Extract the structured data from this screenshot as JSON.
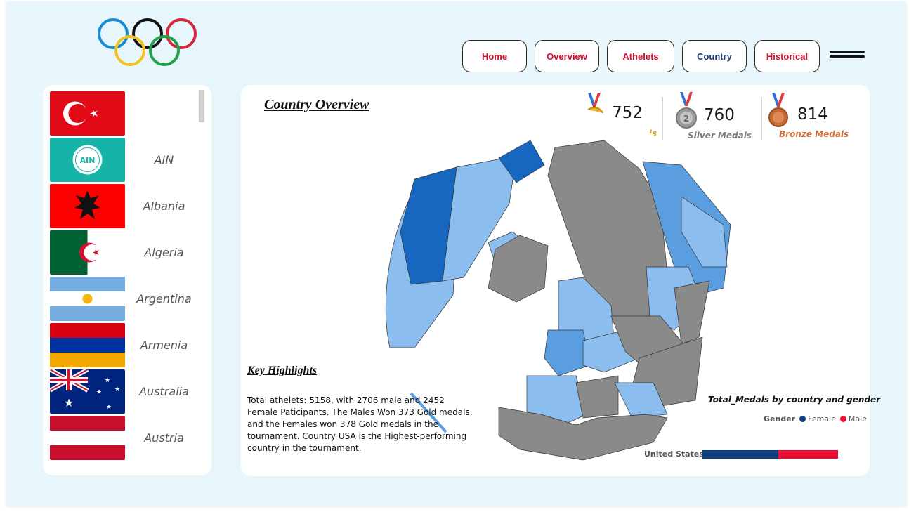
{
  "header": {
    "nav": [
      {
        "label": "Home",
        "active": false
      },
      {
        "label": "Overview",
        "active": false
      },
      {
        "label": "Athelets",
        "active": false
      },
      {
        "label": "Country",
        "active": true
      },
      {
        "label": "Historical",
        "active": false
      }
    ]
  },
  "sidebar": {
    "countries": [
      {
        "name": "",
        "flag": "turkey-flag"
      },
      {
        "name": "AIN",
        "flag": "ain-flag"
      },
      {
        "name": "Albania",
        "flag": "albania-flag"
      },
      {
        "name": "Algeria",
        "flag": "algeria-flag"
      },
      {
        "name": "Argentina",
        "flag": "argentina-flag"
      },
      {
        "name": "Armenia",
        "flag": "armenia-flag"
      },
      {
        "name": "Australia",
        "flag": "australia-flag"
      },
      {
        "name": "Austria",
        "flag": "austria-flag"
      }
    ]
  },
  "main": {
    "title": "Country Overview",
    "medals": [
      {
        "value": "752",
        "label": "Gold Medals",
        "color": "#d6a41a"
      },
      {
        "value": "760",
        "label": "Silver Medals",
        "color": "#7a7a7a"
      },
      {
        "value": "814",
        "label": "Bronze Medals",
        "color": "#cd6f3a"
      }
    ],
    "key_highlights": {
      "title": "Key Highlights",
      "text": "Total athelets: 5158, with 2706 male and 2452 Female Paticipants. The Males Won 373 Gold medals, and the Females won 378 Gold medals in the tournament. Country USA is the Highest-performing country in the tournament."
    },
    "gender_chart": {
      "title": "Total_Medals by country and gender",
      "legend_label": "Gender",
      "legend": [
        {
          "name": "Female",
          "color": "#0d3f7f"
        },
        {
          "name": "Male",
          "color": "#ea1034"
        }
      ],
      "row_label": "United States",
      "female_share": 0.56,
      "male_share": 0.44
    }
  },
  "chart_data": {
    "type": "bar",
    "title": "Total_Medals by country and gender",
    "categories": [
      "United States"
    ],
    "series": [
      {
        "name": "Female",
        "values": [
          0.56
        ]
      },
      {
        "name": "Male",
        "values": [
          0.44
        ]
      }
    ]
  }
}
